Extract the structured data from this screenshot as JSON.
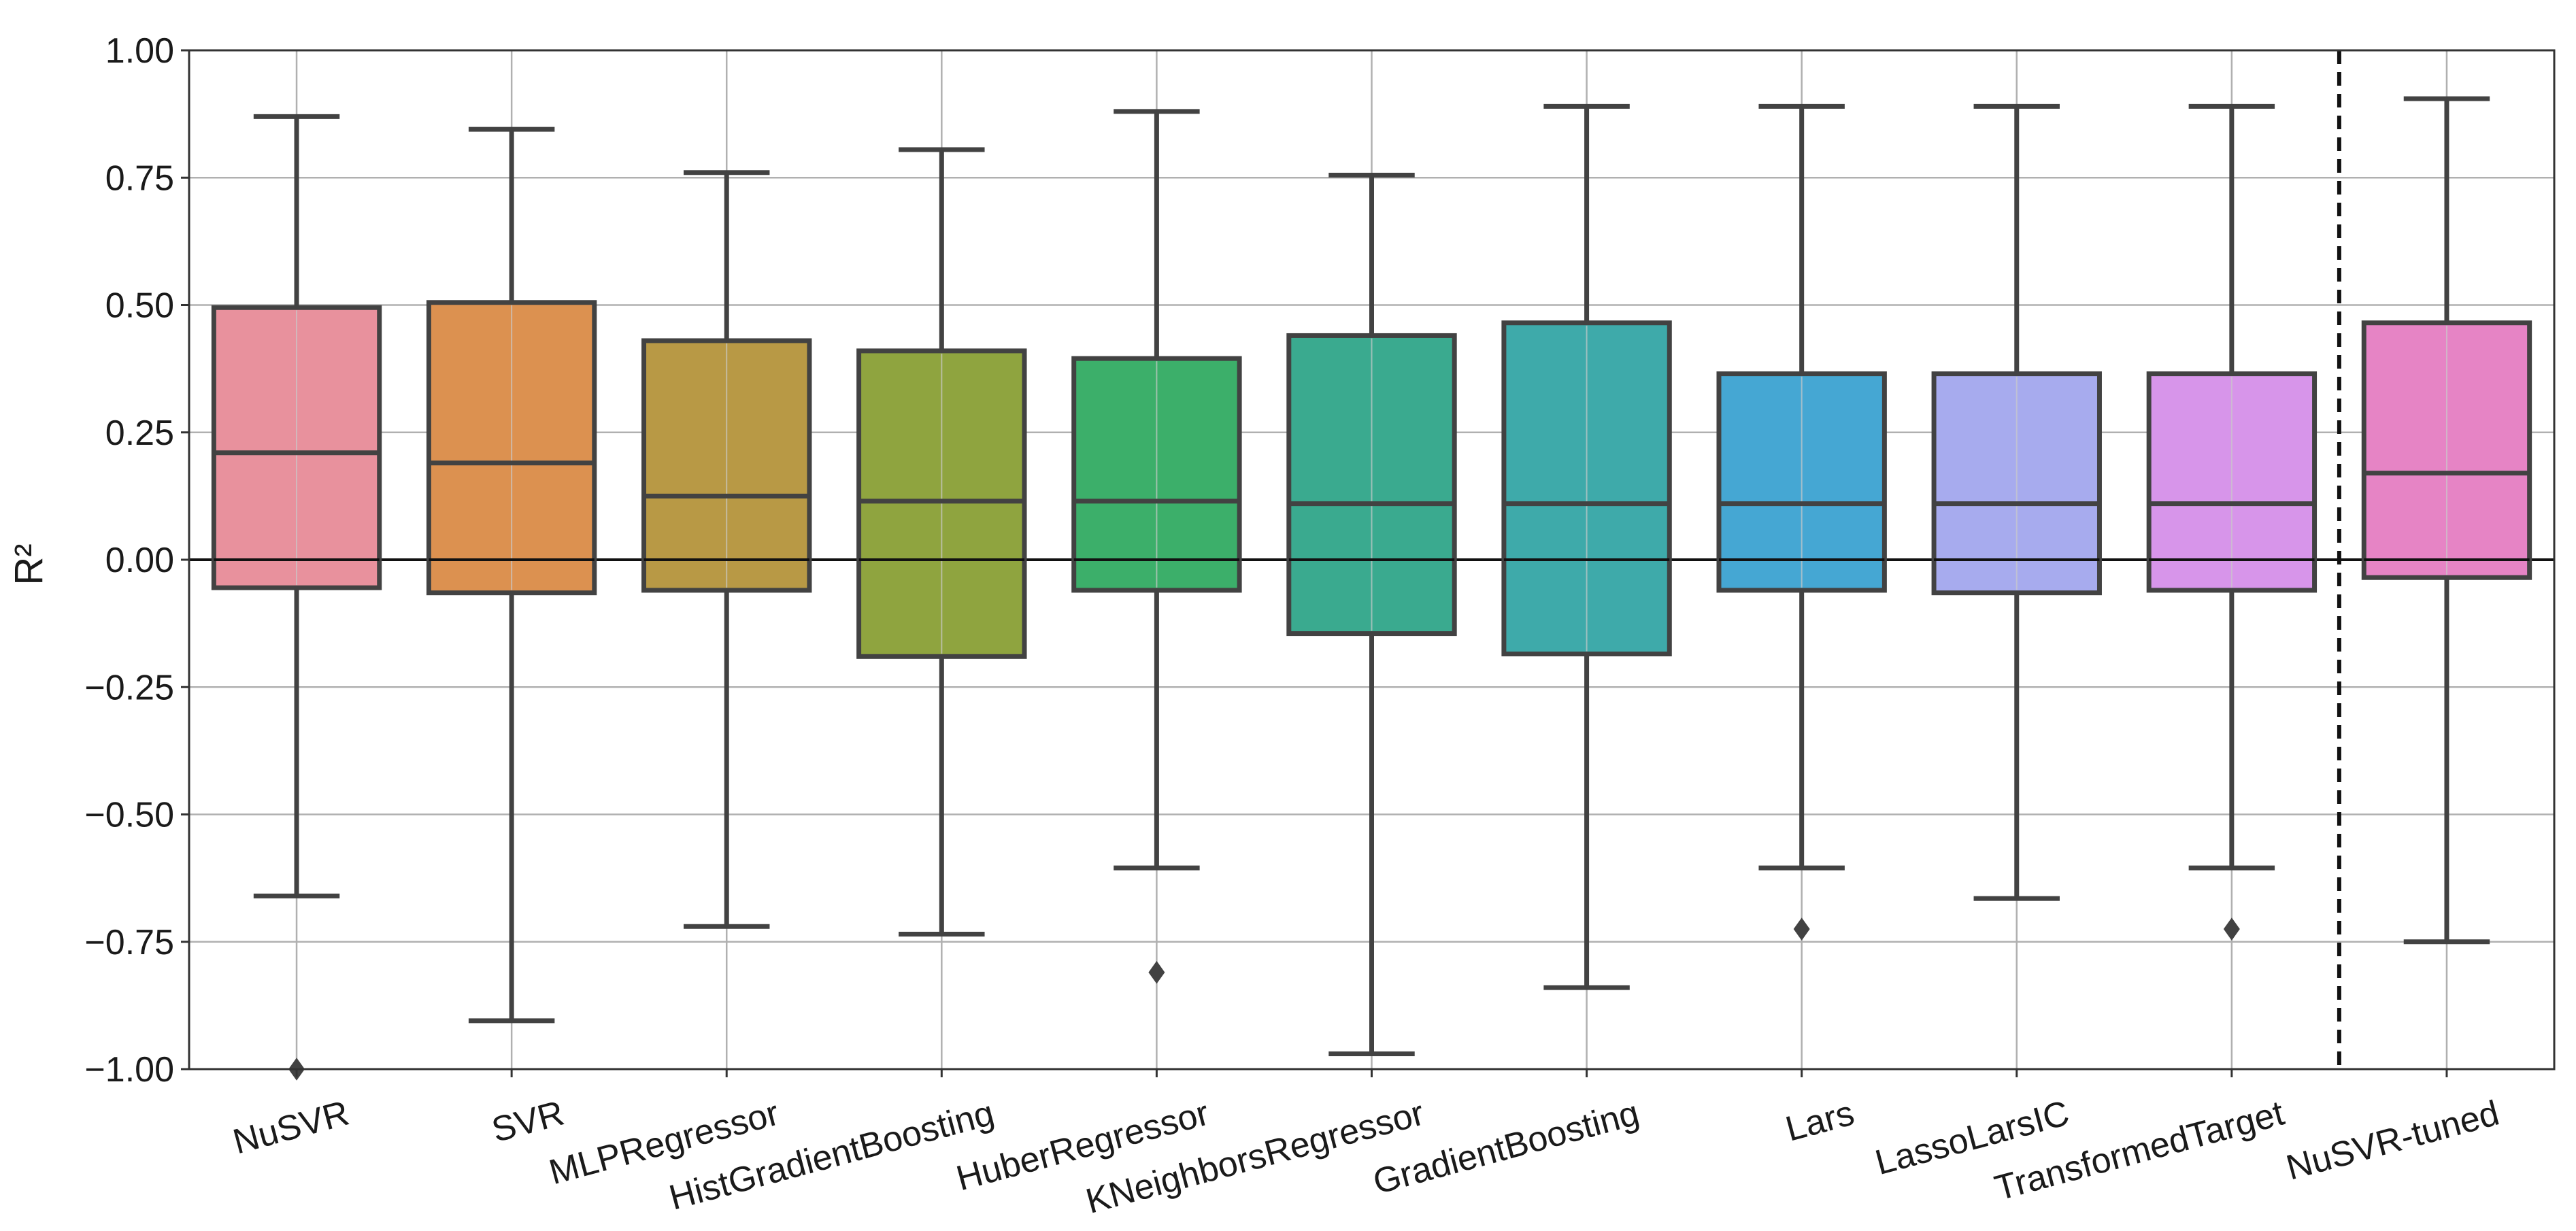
{
  "chart_data": {
    "type": "box",
    "title": "",
    "xlabel": "",
    "ylabel": "R²",
    "ylim": [
      -1.0,
      1.0
    ],
    "yticks": [
      -1.0,
      -0.75,
      -0.5,
      -0.25,
      0.0,
      0.25,
      0.5,
      0.75,
      1.0
    ],
    "ytick_labels": [
      "−1.00",
      "−0.75",
      "−0.50",
      "−0.25",
      "0.00",
      "0.25",
      "0.50",
      "0.75",
      "1.00"
    ],
    "grid": true,
    "reference_line_y": 0.0,
    "separator_after_category": "TransformedTarget",
    "categories": [
      "NuSVR",
      "SVR",
      "MLPRegressor",
      "HistGradientBoosting",
      "HuberRegressor",
      "KNeighborsRegressor",
      "GradientBoosting",
      "Lars",
      "LassoLarsIC",
      "TransformedTarget",
      "NuSVR-tuned"
    ],
    "boxes": [
      {
        "name": "NuSVR",
        "whisker_low": -0.66,
        "q1": -0.055,
        "median": 0.21,
        "q3": 0.495,
        "whisker_high": 0.87,
        "outliers": [
          -1.0
        ],
        "color": "#e8919d"
      },
      {
        "name": "SVR",
        "whisker_low": -0.905,
        "q1": -0.065,
        "median": 0.19,
        "q3": 0.505,
        "whisker_high": 0.845,
        "outliers": [],
        "color": "#dc9150"
      },
      {
        "name": "MLPRegressor",
        "whisker_low": -0.72,
        "q1": -0.06,
        "median": 0.125,
        "q3": 0.43,
        "whisker_high": 0.76,
        "outliers": [],
        "color": "#b89945"
      },
      {
        "name": "HistGradientBoosting",
        "whisker_low": -0.735,
        "q1": -0.19,
        "median": 0.115,
        "q3": 0.41,
        "whisker_high": 0.805,
        "outliers": [],
        "color": "#8fa43f"
      },
      {
        "name": "HuberRegressor",
        "whisker_low": -0.605,
        "q1": -0.06,
        "median": 0.115,
        "q3": 0.395,
        "whisker_high": 0.88,
        "outliers": [
          -0.81
        ],
        "color": "#3caf6a"
      },
      {
        "name": "KNeighborsRegressor",
        "whisker_low": -0.97,
        "q1": -0.145,
        "median": 0.11,
        "q3": 0.44,
        "whisker_high": 0.755,
        "outliers": [],
        "color": "#3aaa8f"
      },
      {
        "name": "GradientBoosting",
        "whisker_low": -0.84,
        "q1": -0.185,
        "median": 0.11,
        "q3": 0.465,
        "whisker_high": 0.89,
        "outliers": [],
        "color": "#3eaaaa"
      },
      {
        "name": "Lars",
        "whisker_low": -0.605,
        "q1": -0.06,
        "median": 0.11,
        "q3": 0.365,
        "whisker_high": 0.89,
        "outliers": [
          -0.725
        ],
        "color": "#45a7d3"
      },
      {
        "name": "LassoLarsIC",
        "whisker_low": -0.665,
        "q1": -0.065,
        "median": 0.11,
        "q3": 0.365,
        "whisker_high": 0.89,
        "outliers": [],
        "color": "#a7abee"
      },
      {
        "name": "TransformedTarget",
        "whisker_low": -0.605,
        "q1": -0.06,
        "median": 0.11,
        "q3": 0.365,
        "whisker_high": 0.89,
        "outliers": [
          -0.725
        ],
        "color": "#d795ea"
      },
      {
        "name": "NuSVR-tuned",
        "whisker_low": -0.75,
        "q1": -0.035,
        "median": 0.17,
        "q3": 0.465,
        "whisker_high": 0.905,
        "outliers": [],
        "color": "#e684c5"
      }
    ]
  }
}
